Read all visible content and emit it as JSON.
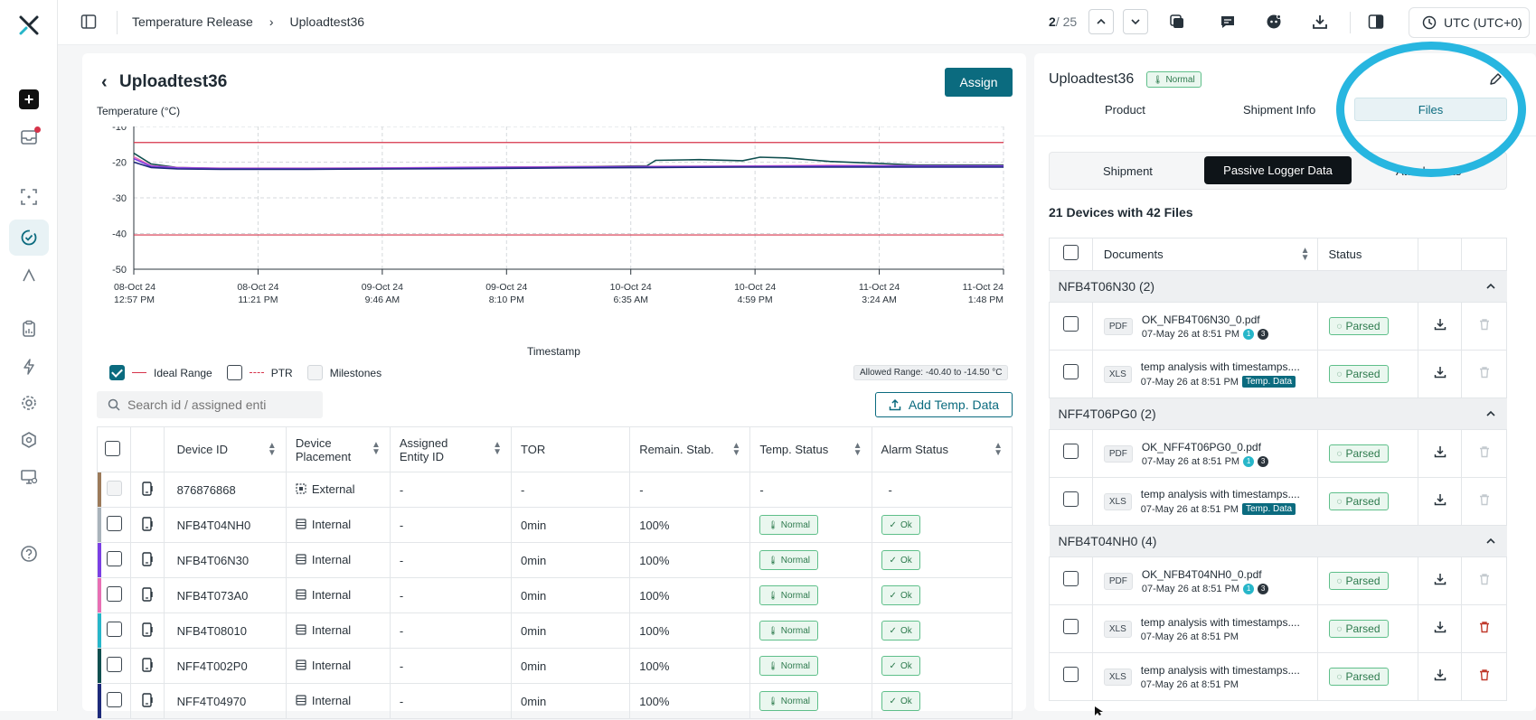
{
  "topbar": {
    "breadcrumb_parent": "Temperature Release",
    "breadcrumb_current": "Uploadtest36",
    "pager_current": "2",
    "pager_total": "/ 25",
    "timezone": "UTC (UTC+0)"
  },
  "main": {
    "title": "Uploadtest36",
    "assign_label": "Assign",
    "chart_ylabel": "Temperature (°C)",
    "chart_xlabel": "Timestamp",
    "legend": {
      "ideal_range": "Ideal Range",
      "ptr": "PTR",
      "milestones": "Milestones",
      "allowed_range": "Allowed Range: -40.40 to -14.50 °C"
    },
    "search_placeholder": "Search id / assigned enti",
    "add_temp_label": "Add Temp. Data",
    "columns": [
      "Device ID",
      "Device Placement",
      "Assigned Entity ID",
      "TOR",
      "Remain. Stab.",
      "Temp. Status",
      "Alarm Status"
    ],
    "rows": [
      {
        "id": "876876868",
        "placement": "External",
        "entity": "-",
        "tor": "-",
        "stab": "-",
        "temp": "-",
        "alarm": "-",
        "color": "#9c7a5a",
        "kind": "external"
      },
      {
        "id": "NFB4T04NH0",
        "placement": "Internal",
        "entity": "-",
        "tor": "0min",
        "stab": "100%",
        "temp": "Normal",
        "alarm": "Ok",
        "color": "#a9b3bb",
        "kind": "internal"
      },
      {
        "id": "NFB4T06N30",
        "placement": "Internal",
        "entity": "-",
        "tor": "0min",
        "stab": "100%",
        "temp": "Normal",
        "alarm": "Ok",
        "color": "#7b3fe4",
        "kind": "internal"
      },
      {
        "id": "NFB4T073A0",
        "placement": "Internal",
        "entity": "-",
        "tor": "0min",
        "stab": "100%",
        "temp": "Normal",
        "alarm": "Ok",
        "color": "#e86fb4",
        "kind": "internal"
      },
      {
        "id": "NFB4T08010",
        "placement": "Internal",
        "entity": "-",
        "tor": "0min",
        "stab": "100%",
        "temp": "Normal",
        "alarm": "Ok",
        "color": "#27b6c9",
        "kind": "internal"
      },
      {
        "id": "NFF4T002P0",
        "placement": "Internal",
        "entity": "-",
        "tor": "0min",
        "stab": "100%",
        "temp": "Normal",
        "alarm": "Ok",
        "color": "#0f4f4f",
        "kind": "internal"
      },
      {
        "id": "NFF4T04970",
        "placement": "Internal",
        "entity": "-",
        "tor": "0min",
        "stab": "100%",
        "temp": "Normal",
        "alarm": "Ok",
        "color": "#1d2a7a",
        "kind": "internal"
      }
    ]
  },
  "chart_data": {
    "type": "line",
    "title": "",
    "ylabel": "Temperature (°C)",
    "xlabel": "Timestamp",
    "ylim": [
      -50,
      -10
    ],
    "yticks": [
      -10,
      -20,
      -30,
      -40,
      -50
    ],
    "xtick_labels": [
      [
        "08-Oct 24",
        "12:57 PM"
      ],
      [
        "08-Oct 24",
        "11:21 PM"
      ],
      [
        "09-Oct 24",
        "9:46 AM"
      ],
      [
        "09-Oct 24",
        "8:10 PM"
      ],
      [
        "10-Oct 24",
        "6:35 AM"
      ],
      [
        "10-Oct 24",
        "4:59 PM"
      ],
      [
        "11-Oct 24",
        "3:24 AM"
      ],
      [
        "11-Oct 24",
        "1:48 PM"
      ]
    ],
    "ideal_range": [
      -40.4,
      -14.5
    ],
    "series": [
      {
        "color": "#0f4f4f",
        "x": [
          0,
          0.02,
          0.05,
          0.1,
          0.2,
          0.3,
          0.4,
          0.5,
          0.59,
          0.6,
          0.65,
          0.7,
          0.72,
          0.75,
          0.8,
          0.85,
          0.9,
          0.95,
          1
        ],
        "y": [
          -17.5,
          -20.5,
          -21.5,
          -21.8,
          -21.9,
          -21.8,
          -21.5,
          -21.3,
          -21.0,
          -19.5,
          -19.3,
          -19.6,
          -18.6,
          -18.8,
          -19.8,
          -20.3,
          -20.8,
          -20.8,
          -20.8
        ]
      },
      {
        "color": "#e86fb4",
        "x": [
          0,
          0.02,
          0.05,
          0.1,
          0.2,
          0.3,
          0.4,
          0.5,
          0.6,
          0.7,
          0.8,
          0.9,
          1
        ],
        "y": [
          -18.5,
          -21.0,
          -21.5,
          -21.7,
          -21.7,
          -21.6,
          -21.4,
          -21.3,
          -21.2,
          -21.1,
          -20.9,
          -21.0,
          -21.0
        ]
      },
      {
        "color": "#7b3fe4",
        "x": [
          0,
          0.02,
          0.05,
          0.1,
          0.2,
          0.3,
          0.4,
          0.5,
          0.6,
          0.7,
          0.8,
          0.9,
          1
        ],
        "y": [
          -19.0,
          -21.2,
          -21.6,
          -21.8,
          -21.8,
          -21.7,
          -21.5,
          -21.4,
          -21.3,
          -21.2,
          -21.1,
          -21.1,
          -21.1
        ]
      },
      {
        "color": "#1d2a7a",
        "x": [
          0,
          0.02,
          0.05,
          0.1,
          0.2,
          0.3,
          0.4,
          0.5,
          0.6,
          0.7,
          0.8,
          0.9,
          1
        ],
        "y": [
          -20.0,
          -21.5,
          -21.9,
          -22.0,
          -22.0,
          -21.9,
          -21.8,
          -21.6,
          -21.5,
          -21.4,
          -21.4,
          -21.4,
          -21.4
        ]
      }
    ]
  },
  "right": {
    "title": "Uploadtest36",
    "status_badge": "Normal",
    "tabs": [
      "Product",
      "Shipment Info",
      "Files"
    ],
    "subtabs": [
      "Shipment",
      "Passive Logger Data",
      "Attachments"
    ],
    "summary": "21 Devices with 42 Files",
    "col_documents": "Documents",
    "col_status": "Status",
    "groups": [
      {
        "name": "NFB4T06N30 (2)",
        "files": [
          {
            "type": "PDF",
            "name": "OK_NFB4T06N30_0.pdf",
            "date": "07-May 26 at 8:51 PM",
            "dots": [
              "1",
              "3"
            ],
            "tempdata": "",
            "status": "Parsed",
            "red_trash": false
          },
          {
            "type": "XLS",
            "name": "temp analysis with timestamps....",
            "date": "07-May 26 at 8:51 PM",
            "dots": [],
            "tempdata": "Temp. Data",
            "status": "Parsed",
            "red_trash": false
          }
        ]
      },
      {
        "name": "NFF4T06PG0 (2)",
        "files": [
          {
            "type": "PDF",
            "name": "OK_NFF4T06PG0_0.pdf",
            "date": "07-May 26 at 8:51 PM",
            "dots": [
              "1",
              "3"
            ],
            "tempdata": "",
            "status": "Parsed",
            "red_trash": false
          },
          {
            "type": "XLS",
            "name": "temp analysis with timestamps....",
            "date": "07-May 26 at 8:51 PM",
            "dots": [],
            "tempdata": "Temp. Data",
            "status": "Parsed",
            "red_trash": false
          }
        ]
      },
      {
        "name": "NFB4T04NH0 (4)",
        "files": [
          {
            "type": "PDF",
            "name": "OK_NFB4T04NH0_0.pdf",
            "date": "07-May 26 at 8:51 PM",
            "dots": [
              "1",
              "3"
            ],
            "tempdata": "",
            "status": "Parsed",
            "red_trash": false
          },
          {
            "type": "XLS",
            "name": "temp analysis with timestamps....",
            "date": "07-May 26 at 8:51 PM",
            "dots": [],
            "tempdata": "",
            "status": "Parsed",
            "red_trash": true
          },
          {
            "type": "XLS",
            "name": "temp analysis with timestamps....",
            "date": "07-May 26 at 8:51 PM",
            "dots": [],
            "tempdata": "",
            "status": "Parsed",
            "red_trash": true
          }
        ]
      }
    ]
  },
  "colors": {
    "accent": "#0b6b7f",
    "highlight_circle": "#27b6e0",
    "ideal_line": "#d6334a"
  }
}
